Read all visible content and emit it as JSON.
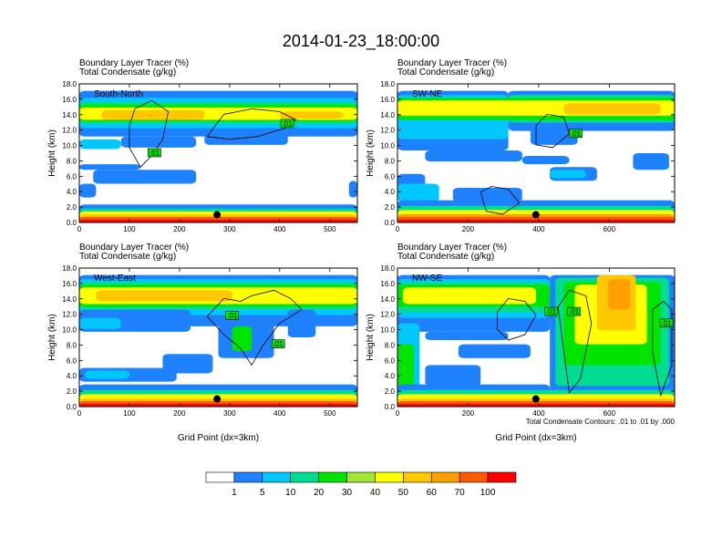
{
  "figure": {
    "title": "2014-01-23_18:00:00",
    "x_axis_label": "Grid Point (dx=3km)",
    "y_axis_label": "Height (km)",
    "field_line1": "Boundary Layer Tracer    (%)",
    "field_line2": "Total Condensate    (g/kg)",
    "contour_note": "Total Condensate Contours: .01 to .01 by .000"
  },
  "colorbar": {
    "levels": [
      "1",
      "5",
      "10",
      "20",
      "30",
      "40",
      "50",
      "60",
      "70",
      "100"
    ],
    "colors": [
      "#ffffff",
      "#1e82ff",
      "#00c8ff",
      "#00dc91",
      "#00e400",
      "#a0e632",
      "#ffff00",
      "#ffc800",
      "#ffa000",
      "#ff5a00",
      "#ff0000"
    ]
  },
  "chart_data": [
    {
      "type": "heatmap",
      "panel_label": "South-North",
      "xlim": [
        0,
        555
      ],
      "ylim": [
        0,
        18
      ],
      "x_ticks": [
        0,
        100,
        200,
        300,
        400,
        500
      ],
      "y_ticks": [
        "0.0",
        "2.0",
        "4.0",
        "6.0",
        "8.0",
        "10.0",
        "12.0",
        "14.0",
        "16.0",
        "18.0"
      ],
      "marker": {
        "x": 275,
        "y": 1.0
      },
      "contour_labels": [
        {
          "text": ".01",
          "x": 150,
          "y": 9.0
        },
        {
          "text": ".01",
          "x": 415,
          "y": 12.8
        }
      ]
    },
    {
      "type": "heatmap",
      "panel_label": "SW-NE",
      "xlim": [
        0,
        785
      ],
      "ylim": [
        0,
        18
      ],
      "x_ticks": [
        0,
        200,
        400,
        600
      ],
      "y_ticks": [
        "0.0",
        "2.0",
        "4.0",
        "6.0",
        "8.0",
        "10.0",
        "12.0",
        "14.0",
        "16.0",
        "18.0"
      ],
      "marker": {
        "x": 392,
        "y": 1.0
      },
      "contour_labels": [
        {
          "text": ".01",
          "x": 505,
          "y": 11.5
        }
      ]
    },
    {
      "type": "heatmap",
      "panel_label": "West-East",
      "xlim": [
        0,
        555
      ],
      "ylim": [
        0,
        18
      ],
      "x_ticks": [
        0,
        100,
        200,
        300,
        400,
        500
      ],
      "y_ticks": [
        "0.0",
        "2.0",
        "4.0",
        "6.0",
        "8.0",
        "10.0",
        "12.0",
        "14.0",
        "16.0",
        "18.0"
      ],
      "marker": {
        "x": 275,
        "y": 1.0
      },
      "contour_labels": [
        {
          "text": ".01",
          "x": 305,
          "y": 11.8
        },
        {
          "text": ".01",
          "x": 397,
          "y": 8.1
        }
      ]
    },
    {
      "type": "heatmap",
      "panel_label": "NW-SE",
      "xlim": [
        0,
        785
      ],
      "ylim": [
        0,
        18
      ],
      "x_ticks": [
        0,
        200,
        400,
        600
      ],
      "y_ticks": [
        "0.0",
        "2.0",
        "4.0",
        "6.0",
        "8.0",
        "10.0",
        "12.0",
        "14.0",
        "16.0",
        "18.0"
      ],
      "marker": {
        "x": 392,
        "y": 1.0
      },
      "contour_labels": [
        {
          "text": ".01",
          "x": 435,
          "y": 12.3
        },
        {
          "text": ".01",
          "x": 500,
          "y": 12.3
        },
        {
          "text": ".01",
          "x": 762,
          "y": 10.8
        }
      ]
    }
  ]
}
